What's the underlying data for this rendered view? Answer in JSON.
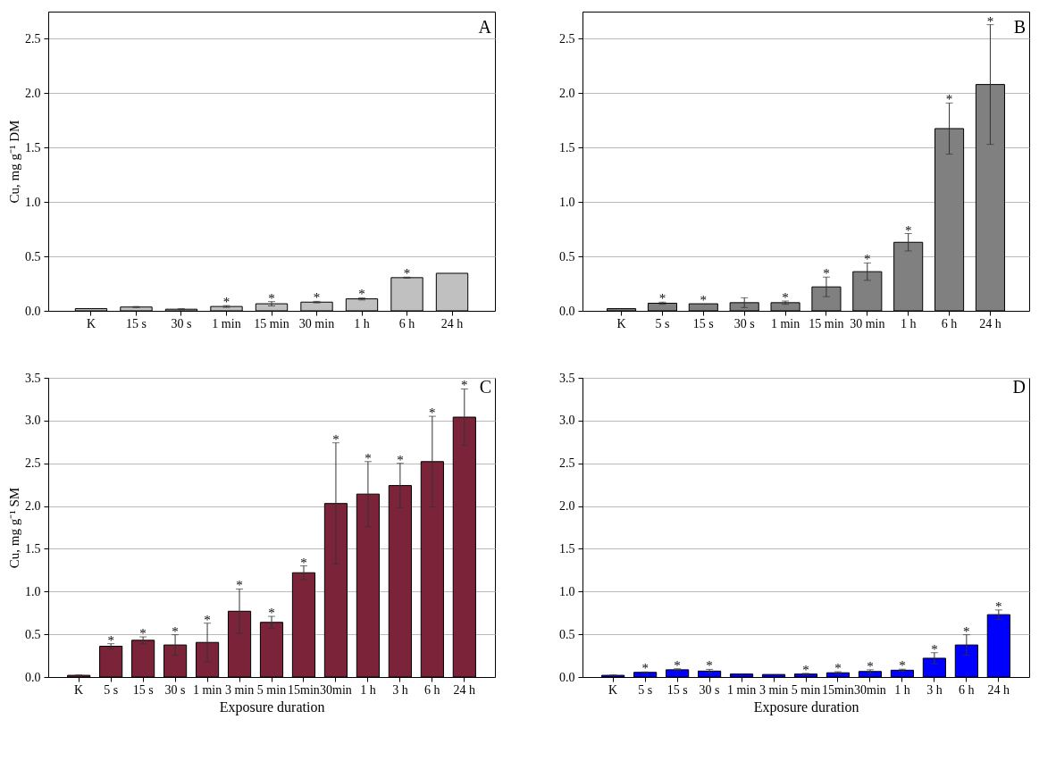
{
  "chart_data": [
    {
      "type": "bar",
      "title": "A",
      "ylabel": "Cu, mg g⁻¹ DM",
      "categories": [
        "K",
        "15 s",
        "30 s",
        "1 min",
        "15 min",
        "30 min",
        "1 h",
        "6 h",
        "24 h"
      ],
      "values": [
        0.02,
        0.035,
        0.015,
        0.04,
        0.065,
        0.08,
        0.11,
        0.305,
        0.345
      ],
      "errors": [
        null,
        0.005,
        0.005,
        0.008,
        0.02,
        0.007,
        0.01,
        0.005,
        null
      ],
      "color": "#c0c0c0",
      "ylim": [
        0,
        2.75
      ],
      "yticks": [
        {
          "value": 0,
          "label": "0.0"
        },
        {
          "value": 0.5,
          "label": "0.5"
        },
        {
          "value": 1,
          "label": "1.0"
        },
        {
          "value": 1.5,
          "label": "1.5"
        },
        {
          "value": 2,
          "label": "2.0"
        },
        {
          "value": 2.5,
          "label": "2.5"
        }
      ],
      "grid": "y",
      "annotations": [
        {
          "text": "*",
          "x": "1 min",
          "y": 0.048
        },
        {
          "text": "*",
          "x": "15 min",
          "y": 0.085
        },
        {
          "text": "*",
          "x": "30 min",
          "y": 0.087
        },
        {
          "text": "*",
          "x": "1 h",
          "y": 0.12
        },
        {
          "text": "*",
          "x": "6 h",
          "y": 0.31
        }
      ]
    },
    {
      "type": "bar",
      "title": "B",
      "categories": [
        "K",
        "5 s",
        "15 s",
        "30 s",
        "1 min",
        "15 min",
        "30 min",
        "1 h",
        "6 h",
        "24 h"
      ],
      "values": [
        0.02,
        0.07,
        0.065,
        0.075,
        0.075,
        0.22,
        0.36,
        0.63,
        1.675,
        2.08
      ],
      "errors": [
        null,
        0.01,
        null,
        0.045,
        0.015,
        0.09,
        0.08,
        0.08,
        0.235,
        0.55
      ],
      "color": "#808080",
      "ylim": [
        0,
        2.75
      ],
      "yticks": [
        {
          "value": 0,
          "label": "0.0"
        },
        {
          "value": 0.5,
          "label": "0.5"
        },
        {
          "value": 1,
          "label": "1.0"
        },
        {
          "value": 1.5,
          "label": "1.5"
        },
        {
          "value": 2,
          "label": "2.0"
        },
        {
          "value": 2.5,
          "label": "2.5"
        }
      ],
      "grid": "y",
      "annotations": [
        {
          "text": "*",
          "x": "5 s",
          "y": 0.08
        },
        {
          "text": "*",
          "x": "15 s",
          "y": 0.065
        },
        {
          "text": "*",
          "x": "1 min",
          "y": 0.09
        },
        {
          "text": "*",
          "x": "15 min",
          "y": 0.31
        },
        {
          "text": "*",
          "x": "30 min",
          "y": 0.44
        },
        {
          "text": "*",
          "x": "1 h",
          "y": 0.71
        },
        {
          "text": "*",
          "x": "6 h",
          "y": 1.91
        },
        {
          "text": "*",
          "x": "24 h",
          "y": 2.63
        }
      ]
    },
    {
      "type": "bar",
      "title": "C",
      "xlabel": "Exposure duration",
      "ylabel": "Cu, mg g⁻¹ SM",
      "categories": [
        "K",
        "5 s",
        "15 s",
        "30 s",
        "1 min",
        "3 min",
        "5 min",
        "15min",
        "30min",
        "1 h",
        "3 h",
        "6 h",
        "24 h"
      ],
      "values": [
        0.02,
        0.36,
        0.43,
        0.375,
        0.405,
        0.77,
        0.64,
        1.22,
        2.03,
        2.14,
        2.24,
        2.52,
        3.04
      ],
      "errors": [
        0.005,
        0.03,
        0.04,
        0.12,
        0.225,
        0.26,
        0.07,
        0.08,
        0.71,
        0.38,
        0.26,
        0.53,
        0.33
      ],
      "color": "#7b2338",
      "ylim": [
        0,
        3.5
      ],
      "yticks": [
        {
          "value": 0,
          "label": "0.0"
        },
        {
          "value": 0.5,
          "label": "0.5"
        },
        {
          "value": 1,
          "label": "1.0"
        },
        {
          "value": 1.5,
          "label": "1.5"
        },
        {
          "value": 2,
          "label": "2.0"
        },
        {
          "value": 2.5,
          "label": "2.5"
        },
        {
          "value": 3,
          "label": "3.0"
        },
        {
          "value": 3.5,
          "label": "3.5"
        }
      ],
      "grid": "y",
      "annotations": [
        {
          "text": "*",
          "x": "5 s",
          "y": 0.39
        },
        {
          "text": "*",
          "x": "15 s",
          "y": 0.47
        },
        {
          "text": "*",
          "x": "30 s",
          "y": 0.495
        },
        {
          "text": "*",
          "x": "1 min",
          "y": 0.63
        },
        {
          "text": "*",
          "x": "3 min",
          "y": 1.03
        },
        {
          "text": "*",
          "x": "5 min",
          "y": 0.71
        },
        {
          "text": "*",
          "x": "15min",
          "y": 1.3
        },
        {
          "text": "*",
          "x": "30min",
          "y": 2.74
        },
        {
          "text": "*",
          "x": "1 h",
          "y": 2.52
        },
        {
          "text": "*",
          "x": "3 h",
          "y": 2.5
        },
        {
          "text": "*",
          "x": "6 h",
          "y": 3.05
        },
        {
          "text": "*",
          "x": "24 h",
          "y": 3.37
        }
      ]
    },
    {
      "type": "bar",
      "title": "D",
      "xlabel": "Exposure duration",
      "categories": [
        "K",
        "5 s",
        "15 s",
        "30 s",
        "1 min",
        "3 min",
        "5 min",
        "15min",
        "30min",
        "1 h",
        "3 h",
        "6 h",
        "24 h"
      ],
      "values": [
        0.02,
        0.055,
        0.085,
        0.07,
        0.035,
        0.03,
        0.035,
        0.05,
        0.065,
        0.08,
        0.22,
        0.375,
        0.73
      ],
      "errors": [
        0.005,
        0.005,
        0.012,
        0.02,
        null,
        null,
        0.008,
        0.012,
        0.02,
        0.012,
        0.065,
        0.12,
        0.055
      ],
      "color": "#0000ff",
      "ylim": [
        0,
        3.5
      ],
      "yticks": [
        {
          "value": 0,
          "label": "0.0"
        },
        {
          "value": 0.5,
          "label": "0.5"
        },
        {
          "value": 1,
          "label": "1.0"
        },
        {
          "value": 1.5,
          "label": "1.5"
        },
        {
          "value": 2,
          "label": "2.0"
        },
        {
          "value": 2.5,
          "label": "2.5"
        },
        {
          "value": 3,
          "label": "3.0"
        },
        {
          "value": 3.5,
          "label": "3.5"
        }
      ],
      "grid": "y",
      "annotations": [
        {
          "text": "*",
          "x": "5 s",
          "y": 0.06
        },
        {
          "text": "*",
          "x": "15 s",
          "y": 0.097
        },
        {
          "text": "*",
          "x": "30 s",
          "y": 0.09
        },
        {
          "text": "*",
          "x": "5 min",
          "y": 0.043
        },
        {
          "text": "*",
          "x": "15min",
          "y": 0.062
        },
        {
          "text": "*",
          "x": "30min",
          "y": 0.085
        },
        {
          "text": "*",
          "x": "1 h",
          "y": 0.092
        },
        {
          "text": "*",
          "x": "3 h",
          "y": 0.285
        },
        {
          "text": "*",
          "x": "6 h",
          "y": 0.495
        },
        {
          "text": "*",
          "x": "24 h",
          "y": 0.785
        }
      ]
    }
  ]
}
